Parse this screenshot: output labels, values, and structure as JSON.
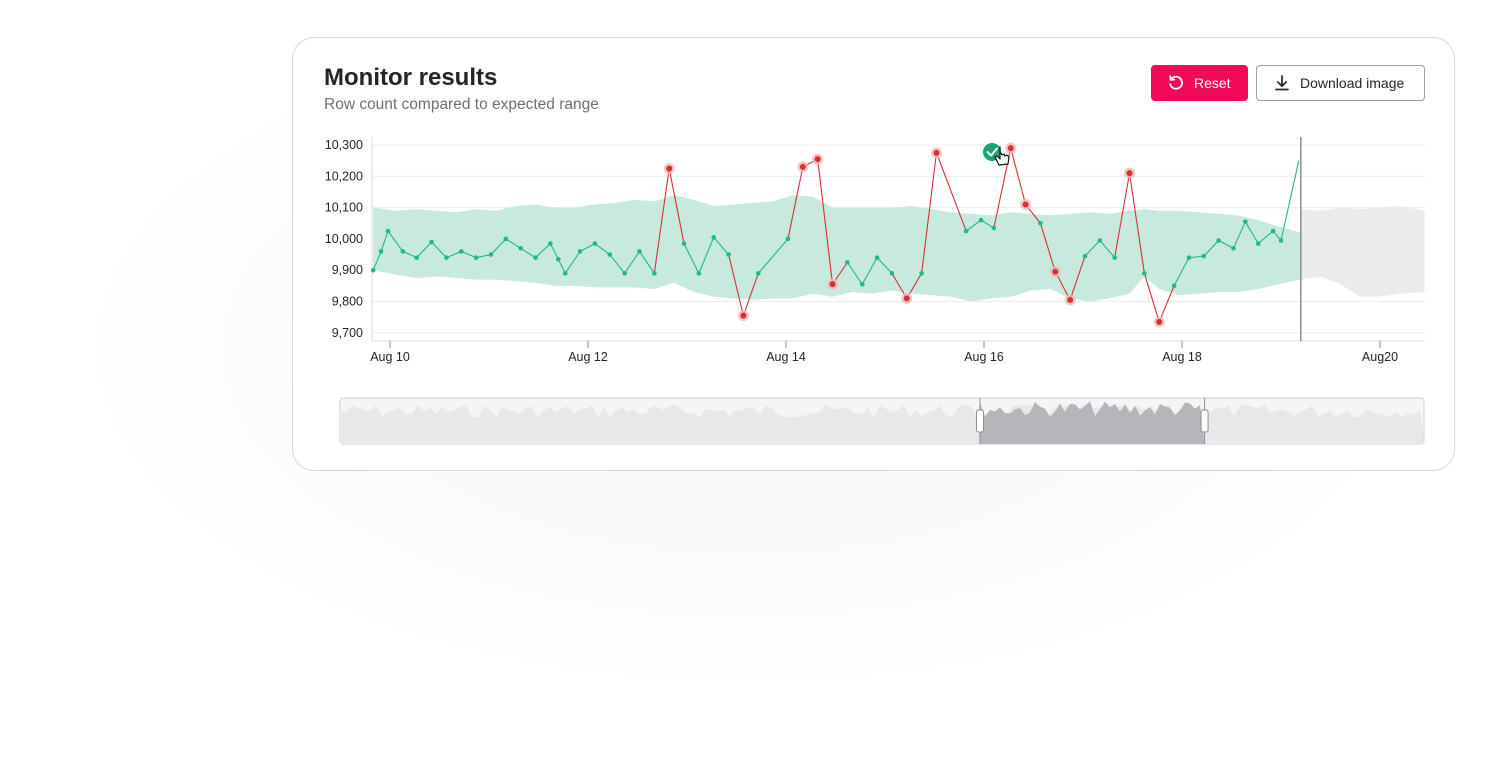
{
  "header": {
    "title": "Monitor results",
    "subtitle": "Row count compared to expected range"
  },
  "toolbar": {
    "reset_label": "Reset",
    "download_label": "Download image"
  },
  "icons": {
    "reset": "reset-icon",
    "download": "download-icon",
    "cursor": "hand-pointer-icon",
    "check": "check-circle-icon"
  },
  "colors": {
    "accent": "#f20a5a",
    "normal_series": "#1fb887",
    "anomaly_series": "#d62f35",
    "expected_band": "#c8e9dd",
    "forecast_band": "#ebebed",
    "navigator_fill": "#e8e8ea",
    "navigator_selected": "#b5b6ba"
  },
  "chart_data": {
    "type": "line",
    "title": "",
    "xlabel": "",
    "ylabel": "",
    "x_ticks": [
      "Aug 10",
      "Aug 12",
      "Aug 14",
      "Aug 16",
      "Aug 18",
      "Aug20"
    ],
    "y_ticks": [
      "10,300",
      "10,200",
      "10,100",
      "10,000",
      "9,900",
      "9,800",
      "9,700"
    ],
    "ylim": [
      9700,
      10300
    ],
    "xlim_days": [
      9.83,
      20.45
    ],
    "grid": true,
    "series": [
      {
        "points": [
          [
            9.83,
            9900
          ],
          [
            9.91,
            9960
          ],
          [
            9.98,
            10025
          ],
          [
            10.13,
            9960
          ],
          [
            10.27,
            9940
          ],
          [
            10.42,
            9990
          ],
          [
            10.57,
            9940
          ],
          [
            10.72,
            9960
          ],
          [
            10.87,
            9940
          ],
          [
            11.02,
            9950
          ],
          [
            11.17,
            10000
          ],
          [
            11.32,
            9970
          ],
          [
            11.47,
            9940
          ],
          [
            11.62,
            9985
          ],
          [
            11.7,
            9935
          ],
          [
            11.77,
            9890
          ],
          [
            11.92,
            9960
          ],
          [
            12.07,
            9985
          ],
          [
            12.22,
            9950
          ],
          [
            12.37,
            9890
          ],
          [
            12.52,
            9960
          ],
          [
            12.67,
            9890
          ],
          [
            12.82,
            10225
          ],
          [
            12.97,
            9985
          ],
          [
            13.12,
            9890
          ],
          [
            13.27,
            10005
          ],
          [
            13.42,
            9950
          ],
          [
            13.57,
            9755
          ],
          [
            13.72,
            9890
          ],
          [
            14.02,
            10000
          ],
          [
            14.17,
            10230
          ],
          [
            14.32,
            10255
          ],
          [
            14.47,
            9855
          ],
          [
            14.62,
            9925
          ],
          [
            14.77,
            9855
          ],
          [
            14.92,
            9940
          ],
          [
            15.07,
            9890
          ],
          [
            15.22,
            9810
          ],
          [
            15.37,
            9890
          ],
          [
            15.52,
            10275
          ],
          [
            15.82,
            10025
          ],
          [
            15.97,
            10060
          ],
          [
            16.1,
            10035
          ],
          [
            16.27,
            10290
          ],
          [
            16.42,
            10110
          ],
          [
            16.57,
            10050
          ],
          [
            16.72,
            9895
          ],
          [
            16.87,
            9805
          ],
          [
            17.02,
            9945
          ],
          [
            17.17,
            9995
          ],
          [
            17.32,
            9940
          ],
          [
            17.47,
            10210
          ],
          [
            17.62,
            9890
          ],
          [
            17.77,
            9735
          ],
          [
            17.92,
            9850
          ],
          [
            18.07,
            9940
          ],
          [
            18.22,
            9945
          ],
          [
            18.37,
            9995
          ],
          [
            18.52,
            9970
          ],
          [
            18.64,
            10055
          ],
          [
            18.77,
            9985
          ],
          [
            18.92,
            10025
          ],
          [
            19.0,
            9995
          ],
          [
            19.18,
            10250
          ]
        ],
        "anomalies": [
          [
            12.82,
            10225
          ],
          [
            13.57,
            9755
          ],
          [
            14.17,
            10230
          ],
          [
            14.32,
            10255
          ],
          [
            14.47,
            9855
          ],
          [
            15.22,
            9810
          ],
          [
            15.52,
            10275
          ],
          [
            16.27,
            10290
          ],
          [
            16.42,
            10110
          ],
          [
            16.72,
            9895
          ],
          [
            16.87,
            9805
          ],
          [
            17.47,
            10210
          ],
          [
            17.77,
            9735
          ]
        ]
      }
    ],
    "expected_range": {
      "x": [
        9.83,
        10.07,
        10.27,
        10.47,
        10.67,
        10.87,
        11.07,
        11.27,
        11.47,
        11.67,
        11.87,
        12.07,
        12.27,
        12.47,
        12.67,
        12.87,
        13.07,
        13.27,
        13.47,
        13.67,
        13.87,
        14.07,
        14.27,
        14.47,
        14.67,
        14.87,
        15.07,
        15.27,
        15.47,
        15.67,
        15.87,
        16.07,
        16.27,
        16.47,
        16.67,
        16.87,
        17.07,
        17.27,
        17.47,
        17.62,
        17.77,
        17.97,
        18.17,
        18.37,
        18.57,
        18.77,
        18.97,
        19.2
      ],
      "upper": [
        10100,
        10090,
        10095,
        10090,
        10085,
        10095,
        10090,
        10105,
        10110,
        10100,
        10100,
        10110,
        10115,
        10125,
        10120,
        10140,
        10125,
        10105,
        10110,
        10115,
        10120,
        10140,
        10135,
        10100,
        10100,
        10100,
        10100,
        10105,
        10095,
        10085,
        10080,
        10075,
        10085,
        10080,
        10075,
        10080,
        10085,
        10080,
        10090,
        10095,
        10090,
        10090,
        10085,
        10080,
        10075,
        10060,
        10040,
        10020
      ],
      "lower": [
        9900,
        9885,
        9875,
        9880,
        9875,
        9870,
        9870,
        9865,
        9860,
        9850,
        9850,
        9845,
        9845,
        9845,
        9840,
        9860,
        9830,
        9815,
        9810,
        9805,
        9810,
        9810,
        9825,
        9815,
        9830,
        9825,
        9835,
        9825,
        9820,
        9815,
        9800,
        9810,
        9815,
        9835,
        9840,
        9810,
        9800,
        9810,
        9825,
        9880,
        9840,
        9820,
        9825,
        9830,
        9830,
        9840,
        9855,
        9870
      ]
    },
    "forecast_range": {
      "x": [
        19.2,
        19.4,
        19.6,
        19.8,
        20.0,
        20.2,
        20.45
      ],
      "upper": [
        10095,
        10090,
        10100,
        10095,
        10100,
        10105,
        10090
      ],
      "lower": [
        9870,
        9880,
        9855,
        9815,
        9815,
        9825,
        9830
      ]
    },
    "cutoff_day": 19.2,
    "navigator_selection_days": [
      16.1,
      18.3
    ]
  }
}
